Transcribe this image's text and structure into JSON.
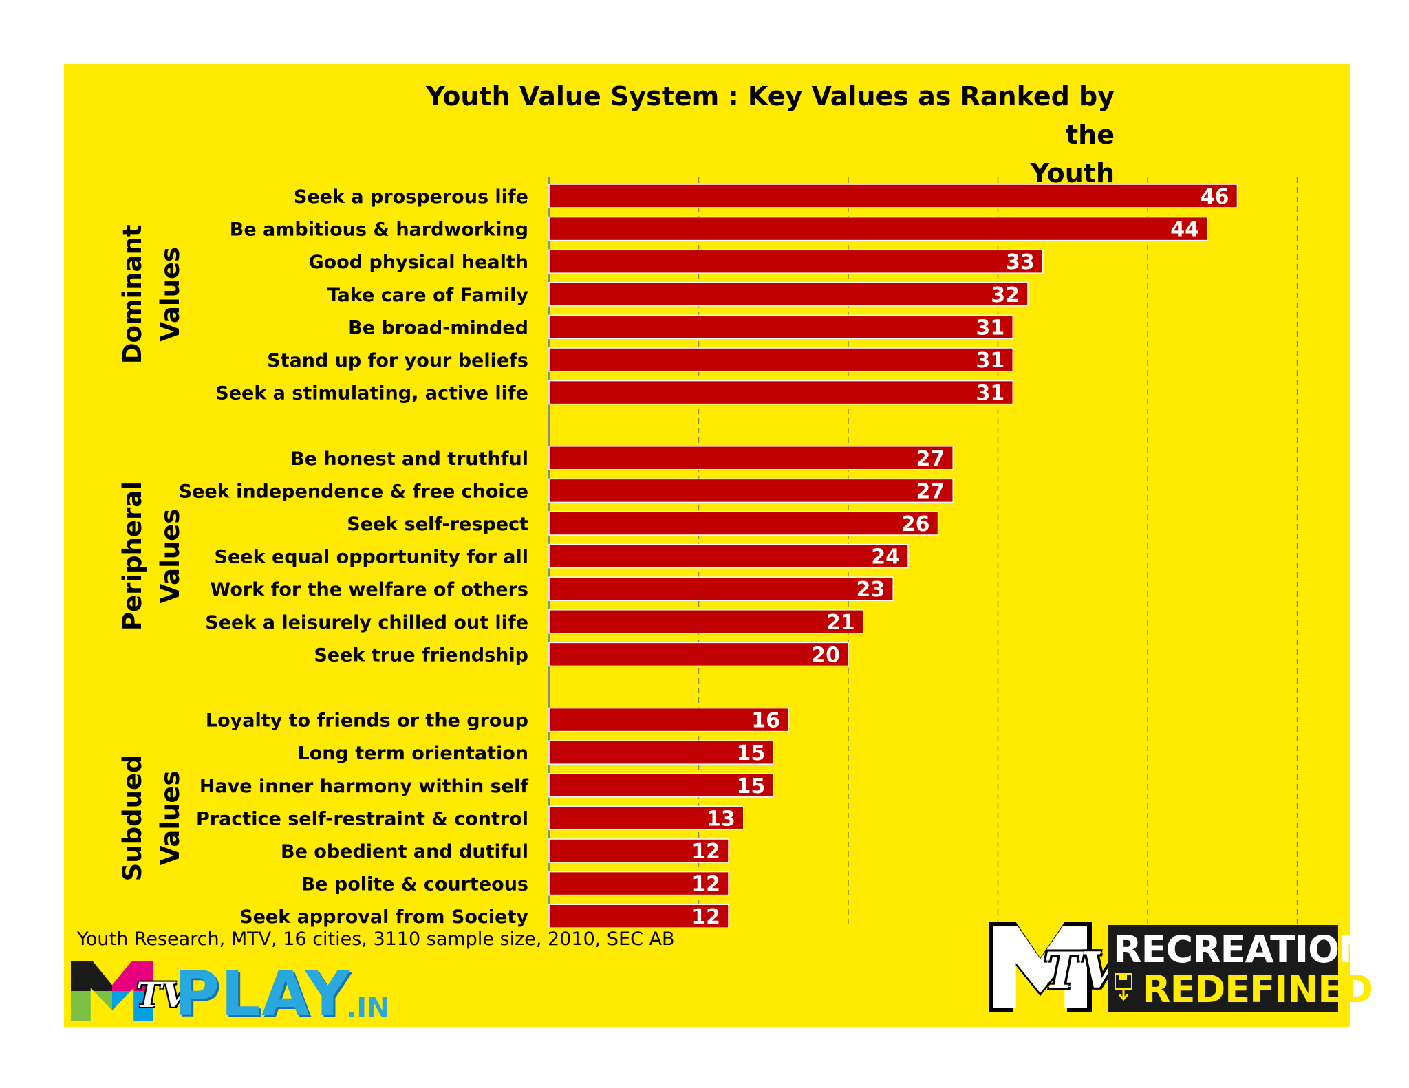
{
  "colors": {
    "background": "#FFEA00",
    "bar": "#C00000",
    "bar_border": "#ffffff",
    "value_text": "#ffffff"
  },
  "chart_data": {
    "type": "bar",
    "orientation": "horizontal",
    "title": "Youth Value System : Key Values as Ranked by the\nYouth",
    "xlim": [
      0,
      50
    ],
    "x_gridlines": [
      10,
      20,
      30,
      40,
      50
    ],
    "x_tick_labels_shown": false,
    "grid": "vertical dashed",
    "legend": "none",
    "groups": [
      {
        "name": "Dominant\nValues",
        "items": [
          {
            "label": "Seek a prosperous life",
            "value": 46
          },
          {
            "label": "Be ambitious & hardworking",
            "value": 44
          },
          {
            "label": "Good physical health",
            "value": 33
          },
          {
            "label": "Take care of Family",
            "value": 32
          },
          {
            "label": "Be broad-minded",
            "value": 31
          },
          {
            "label": "Stand up for your beliefs",
            "value": 31
          },
          {
            "label": "Seek a stimulating, active life",
            "value": 31
          }
        ]
      },
      {
        "name": "Peripheral\nValues",
        "items": [
          {
            "label": "Be honest and truthful",
            "value": 27
          },
          {
            "label": "Seek independence & free choice",
            "value": 27
          },
          {
            "label": "Seek self-respect",
            "value": 26
          },
          {
            "label": "Seek equal opportunity for all",
            "value": 24
          },
          {
            "label": "Work for the welfare of others",
            "value": 23
          },
          {
            "label": "Seek a leisurely chilled out life",
            "value": 21
          },
          {
            "label": "Seek true friendship",
            "value": 20
          }
        ]
      },
      {
        "name": "Subdued\nValues",
        "items": [
          {
            "label": "Loyalty  to friends or the group",
            "value": 16
          },
          {
            "label": "Long term orientation",
            "value": 15
          },
          {
            "label": "Have inner harmony within self",
            "value": 15
          },
          {
            "label": "Practice self-restraint & control",
            "value": 13
          },
          {
            "label": "Be obedient and dutiful",
            "value": 12
          },
          {
            "label": "Be polite & courteous",
            "value": 12
          },
          {
            "label": "Seek approval from Society",
            "value": 12
          }
        ]
      }
    ]
  },
  "source_note": "Youth Research, MTV, 16 cities, 3110 sample size, 2010, SEC AB",
  "logos": {
    "left": {
      "mtv": "TV",
      "play": "PLAY",
      "suffix": ".IN"
    },
    "right": {
      "mtv": "TV",
      "line1": "RECREATION",
      "line2": "REDEFINED",
      "icon": "floppy-download-icon"
    }
  }
}
